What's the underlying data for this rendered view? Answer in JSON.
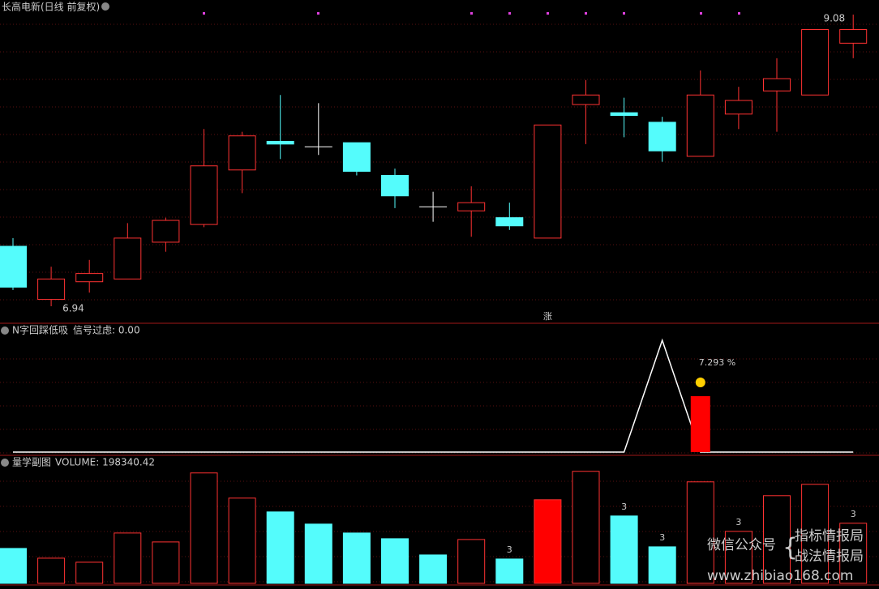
{
  "chart_data": [
    {
      "type": "candlestick",
      "title": "长高电新(日线 前复权)",
      "open": [
        7.38,
        6.99,
        7.12,
        7.14,
        7.41,
        7.54,
        7.94,
        8.15,
        8.11,
        8.14,
        7.9,
        7.67,
        7.64,
        7.59,
        7.44,
        8.42,
        8.36,
        8.29,
        8.04,
        8.35,
        8.52,
        8.49,
        8.87
      ],
      "high": [
        7.44,
        7.23,
        7.28,
        7.55,
        7.59,
        8.24,
        8.22,
        8.49,
        8.43,
        8.14,
        7.95,
        7.78,
        7.82,
        7.7,
        8.27,
        8.6,
        8.47,
        8.33,
        8.67,
        8.55,
        8.76,
        8.97,
        9.08
      ],
      "low": [
        7.06,
        6.94,
        7.04,
        7.14,
        7.34,
        7.52,
        7.77,
        8.02,
        8.05,
        7.9,
        7.66,
        7.56,
        7.45,
        7.5,
        7.44,
        8.13,
        8.18,
        8.0,
        8.04,
        8.24,
        8.22,
        8.49,
        8.76
      ],
      "close": [
        7.08,
        7.14,
        7.18,
        7.44,
        7.57,
        7.97,
        8.19,
        8.13,
        8.11,
        7.93,
        7.75,
        7.67,
        7.7,
        7.53,
        8.27,
        8.49,
        8.34,
        8.08,
        8.49,
        8.45,
        8.61,
        8.97,
        8.97
      ],
      "ylim": [
        6.94,
        9.08
      ],
      "up_color": "#ff3232",
      "down_color": "#54fcfc",
      "flat_color": "#ffffff",
      "high_label": "9.08",
      "low_label": "6.94",
      "signal_label": "涨"
    },
    {
      "type": "line",
      "title": "N字回踩低吸",
      "subtitle": "信号过虑: 0.00",
      "values": [
        0,
        0,
        0,
        0,
        0,
        0,
        0,
        0,
        0,
        0,
        0,
        0,
        0,
        0,
        0,
        0,
        0,
        1,
        0,
        0,
        0,
        0,
        0
      ],
      "bar_index": 18,
      "bar_value": 0.5,
      "bar_color": "#ff0000",
      "bar_label": "7.293 %",
      "ylim": [
        0,
        1
      ]
    },
    {
      "type": "bar",
      "title": "量学副图",
      "subtitle": "VOLUME: 198340.42",
      "values": [
        115240,
        83080,
        69680,
        166160,
        136680,
        364480,
        281400,
        235840,
        195640,
        166160,
        147400,
        93800,
        144720,
        80400,
        276040,
        369840,
        222440,
        120600,
        335000,
        171520,
        289440,
        326960,
        198340.42
      ],
      "styles": [
        "down",
        "up",
        "up",
        "up",
        "up",
        "up",
        "up",
        "down",
        "down",
        "down",
        "down",
        "down",
        "up",
        "down",
        "signal",
        "up",
        "down",
        "down",
        "up",
        "up",
        "up",
        "up",
        "up"
      ],
      "value_labels": [
        null,
        null,
        null,
        null,
        null,
        null,
        null,
        null,
        null,
        null,
        null,
        null,
        null,
        "3",
        null,
        null,
        "3",
        "3",
        null,
        "3",
        null,
        null,
        "3"
      ],
      "ylim": [
        0,
        420000
      ]
    }
  ],
  "watermark": {
    "left": "微信公众号",
    "right_top": "指标情报局",
    "right_bottom": "战法情报局",
    "url": "www.zhibiao168.com"
  }
}
